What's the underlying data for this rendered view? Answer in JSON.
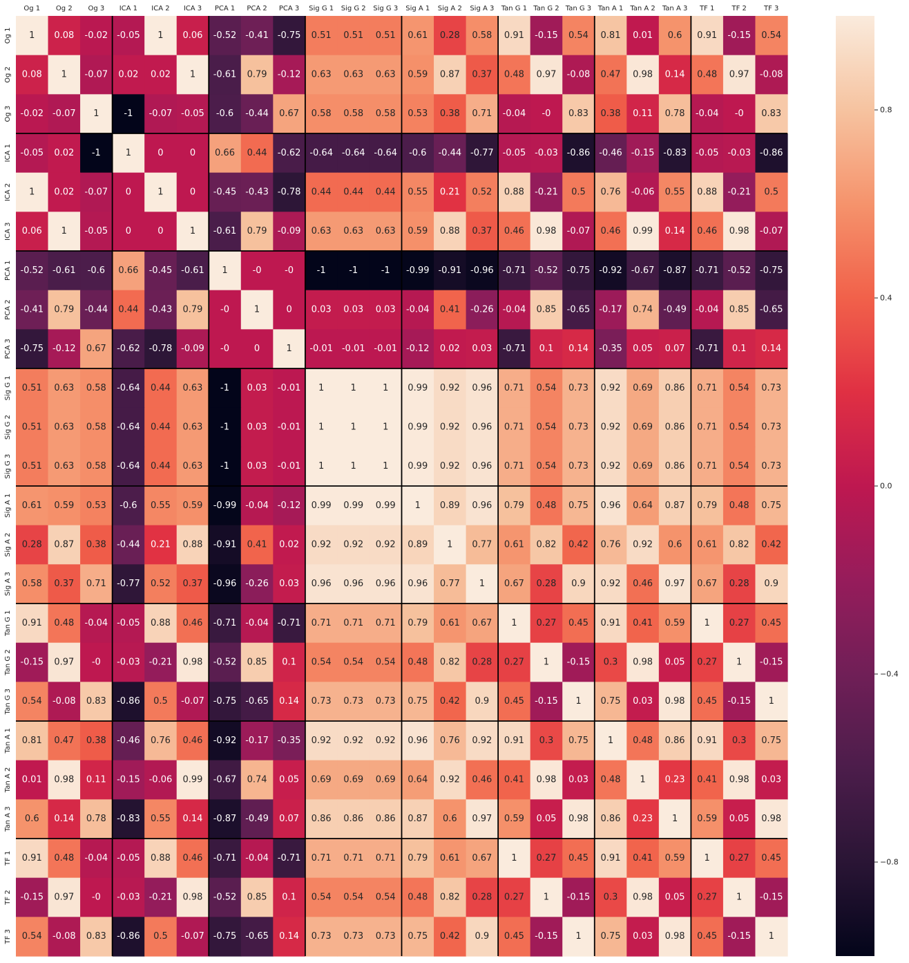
{
  "chart_data": {
    "type": "heatmap",
    "title": "",
    "xlabel": "",
    "ylabel": "",
    "x_tick_position": "top",
    "labels": [
      "Og 1",
      "Og 2",
      "Og 3",
      "ICA 1",
      "ICA 2",
      "ICA 3",
      "PCA 1",
      "PCA 2",
      "PCA 3",
      "Sig G 1",
      "Sig G 2",
      "Sig G 3",
      "Sig A 1",
      "Sig A 2",
      "Sig A 3",
      "Tan G 1",
      "Tan G 2",
      "Tan G 3",
      "Tan A 1",
      "Tan A 2",
      "Tan A 3",
      "TF 1",
      "TF 2",
      "TF 3"
    ],
    "group_size": 3,
    "colormap": "rocket",
    "value_range": [
      -1,
      1
    ],
    "colorbar_ticks": [
      -0.8,
      -0.4,
      0.0,
      0.4,
      0.8
    ],
    "colorbar_tick_labels": [
      "−0.8",
      "−0.4",
      "0.0",
      "0.4",
      "0.8"
    ],
    "values": [
      [
        "1",
        "0.08",
        "-0.02",
        "-0.05",
        "1",
        "0.06",
        "-0.52",
        "-0.41",
        "-0.75",
        "0.51",
        "0.51",
        "0.51",
        "0.61",
        "0.28",
        "0.58",
        "0.91",
        "-0.15",
        "0.54",
        "0.81",
        "0.01",
        "0.6",
        "0.91",
        "-0.15",
        "0.54"
      ],
      [
        "0.08",
        "1",
        "-0.07",
        "0.02",
        "0.02",
        "1",
        "-0.61",
        "0.79",
        "-0.12",
        "0.63",
        "0.63",
        "0.63",
        "0.59",
        "0.87",
        "0.37",
        "0.48",
        "0.97",
        "-0.08",
        "0.47",
        "0.98",
        "0.14",
        "0.48",
        "0.97",
        "-0.08"
      ],
      [
        "-0.02",
        "-0.07",
        "1",
        "-1",
        "-0.07",
        "-0.05",
        "-0.6",
        "-0.44",
        "0.67",
        "0.58",
        "0.58",
        "0.58",
        "0.53",
        "0.38",
        "0.71",
        "-0.04",
        "-0",
        "0.83",
        "0.38",
        "0.11",
        "0.78",
        "-0.04",
        "-0",
        "0.83"
      ],
      [
        "-0.05",
        "0.02",
        "-1",
        "1",
        "0",
        "0",
        "0.66",
        "0.44",
        "-0.62",
        "-0.64",
        "-0.64",
        "-0.64",
        "-0.6",
        "-0.44",
        "-0.77",
        "-0.05",
        "-0.03",
        "-0.86",
        "-0.46",
        "-0.15",
        "-0.83",
        "-0.05",
        "-0.03",
        "-0.86"
      ],
      [
        "1",
        "0.02",
        "-0.07",
        "0",
        "1",
        "0",
        "-0.45",
        "-0.43",
        "-0.78",
        "0.44",
        "0.44",
        "0.44",
        "0.55",
        "0.21",
        "0.52",
        "0.88",
        "-0.21",
        "0.5",
        "0.76",
        "-0.06",
        "0.55",
        "0.88",
        "-0.21",
        "0.5"
      ],
      [
        "0.06",
        "1",
        "-0.05",
        "0",
        "0",
        "1",
        "-0.61",
        "0.79",
        "-0.09",
        "0.63",
        "0.63",
        "0.63",
        "0.59",
        "0.88",
        "0.37",
        "0.46",
        "0.98",
        "-0.07",
        "0.46",
        "0.99",
        "0.14",
        "0.46",
        "0.98",
        "-0.07"
      ],
      [
        "-0.52",
        "-0.61",
        "-0.6",
        "0.66",
        "-0.45",
        "-0.61",
        "1",
        "-0",
        "-0",
        "-1",
        "-1",
        "-1",
        "-0.99",
        "-0.91",
        "-0.96",
        "-0.71",
        "-0.52",
        "-0.75",
        "-0.92",
        "-0.67",
        "-0.87",
        "-0.71",
        "-0.52",
        "-0.75"
      ],
      [
        "-0.41",
        "0.79",
        "-0.44",
        "0.44",
        "-0.43",
        "0.79",
        "-0",
        "1",
        "0",
        "0.03",
        "0.03",
        "0.03",
        "-0.04",
        "0.41",
        "-0.26",
        "-0.04",
        "0.85",
        "-0.65",
        "-0.17",
        "0.74",
        "-0.49",
        "-0.04",
        "0.85",
        "-0.65"
      ],
      [
        "-0.75",
        "-0.12",
        "0.67",
        "-0.62",
        "-0.78",
        "-0.09",
        "-0",
        "0",
        "1",
        "-0.01",
        "-0.01",
        "-0.01",
        "-0.12",
        "0.02",
        "0.03",
        "-0.71",
        "0.1",
        "0.14",
        "-0.35",
        "0.05",
        "0.07",
        "-0.71",
        "0.1",
        "0.14"
      ],
      [
        "0.51",
        "0.63",
        "0.58",
        "-0.64",
        "0.44",
        "0.63",
        "-1",
        "0.03",
        "-0.01",
        "1",
        "1",
        "1",
        "0.99",
        "0.92",
        "0.96",
        "0.71",
        "0.54",
        "0.73",
        "0.92",
        "0.69",
        "0.86",
        "0.71",
        "0.54",
        "0.73"
      ],
      [
        "0.51",
        "0.63",
        "0.58",
        "-0.64",
        "0.44",
        "0.63",
        "-1",
        "0.03",
        "-0.01",
        "1",
        "1",
        "1",
        "0.99",
        "0.92",
        "0.96",
        "0.71",
        "0.54",
        "0.73",
        "0.92",
        "0.69",
        "0.86",
        "0.71",
        "0.54",
        "0.73"
      ],
      [
        "0.51",
        "0.63",
        "0.58",
        "-0.64",
        "0.44",
        "0.63",
        "-1",
        "0.03",
        "-0.01",
        "1",
        "1",
        "1",
        "0.99",
        "0.92",
        "0.96",
        "0.71",
        "0.54",
        "0.73",
        "0.92",
        "0.69",
        "0.86",
        "0.71",
        "0.54",
        "0.73"
      ],
      [
        "0.61",
        "0.59",
        "0.53",
        "-0.6",
        "0.55",
        "0.59",
        "-0.99",
        "-0.04",
        "-0.12",
        "0.99",
        "0.99",
        "0.99",
        "1",
        "0.89",
        "0.96",
        "0.79",
        "0.48",
        "0.75",
        "0.96",
        "0.64",
        "0.87",
        "0.79",
        "0.48",
        "0.75"
      ],
      [
        "0.28",
        "0.87",
        "0.38",
        "-0.44",
        "0.21",
        "0.88",
        "-0.91",
        "0.41",
        "0.02",
        "0.92",
        "0.92",
        "0.92",
        "0.89",
        "1",
        "0.77",
        "0.61",
        "0.82",
        "0.42",
        "0.76",
        "0.92",
        "0.6",
        "0.61",
        "0.82",
        "0.42"
      ],
      [
        "0.58",
        "0.37",
        "0.71",
        "-0.77",
        "0.52",
        "0.37",
        "-0.96",
        "-0.26",
        "0.03",
        "0.96",
        "0.96",
        "0.96",
        "0.96",
        "0.77",
        "1",
        "0.67",
        "0.28",
        "0.9",
        "0.92",
        "0.46",
        "0.97",
        "0.67",
        "0.28",
        "0.9"
      ],
      [
        "0.91",
        "0.48",
        "-0.04",
        "-0.05",
        "0.88",
        "0.46",
        "-0.71",
        "-0.04",
        "-0.71",
        "0.71",
        "0.71",
        "0.71",
        "0.79",
        "0.61",
        "0.67",
        "1",
        "0.27",
        "0.45",
        "0.91",
        "0.41",
        "0.59",
        "1",
        "0.27",
        "0.45"
      ],
      [
        "-0.15",
        "0.97",
        "-0",
        "-0.03",
        "-0.21",
        "0.98",
        "-0.52",
        "0.85",
        "0.1",
        "0.54",
        "0.54",
        "0.54",
        "0.48",
        "0.82",
        "0.28",
        "0.27",
        "1",
        "-0.15",
        "0.3",
        "0.98",
        "0.05",
        "0.27",
        "1",
        "-0.15"
      ],
      [
        "0.54",
        "-0.08",
        "0.83",
        "-0.86",
        "0.5",
        "-0.07",
        "-0.75",
        "-0.65",
        "0.14",
        "0.73",
        "0.73",
        "0.73",
        "0.75",
        "0.42",
        "0.9",
        "0.45",
        "-0.15",
        "1",
        "0.75",
        "0.03",
        "0.98",
        "0.45",
        "-0.15",
        "1"
      ],
      [
        "0.81",
        "0.47",
        "0.38",
        "-0.46",
        "0.76",
        "0.46",
        "-0.92",
        "-0.17",
        "-0.35",
        "0.92",
        "0.92",
        "0.92",
        "0.96",
        "0.76",
        "0.92",
        "0.91",
        "0.3",
        "0.75",
        "1",
        "0.48",
        "0.86",
        "0.91",
        "0.3",
        "0.75"
      ],
      [
        "0.01",
        "0.98",
        "0.11",
        "-0.15",
        "-0.06",
        "0.99",
        "-0.67",
        "0.74",
        "0.05",
        "0.69",
        "0.69",
        "0.69",
        "0.64",
        "0.92",
        "0.46",
        "0.41",
        "0.98",
        "0.03",
        "0.48",
        "1",
        "0.23",
        "0.41",
        "0.98",
        "0.03"
      ],
      [
        "0.6",
        "0.14",
        "0.78",
        "-0.83",
        "0.55",
        "0.14",
        "-0.87",
        "-0.49",
        "0.07",
        "0.86",
        "0.86",
        "0.86",
        "0.87",
        "0.6",
        "0.97",
        "0.59",
        "0.05",
        "0.98",
        "0.86",
        "0.23",
        "1",
        "0.59",
        "0.05",
        "0.98"
      ],
      [
        "0.91",
        "0.48",
        "-0.04",
        "-0.05",
        "0.88",
        "0.46",
        "-0.71",
        "-0.04",
        "-0.71",
        "0.71",
        "0.71",
        "0.71",
        "0.79",
        "0.61",
        "0.67",
        "1",
        "0.27",
        "0.45",
        "0.91",
        "0.41",
        "0.59",
        "1",
        "0.27",
        "0.45"
      ],
      [
        "-0.15",
        "0.97",
        "-0",
        "-0.03",
        "-0.21",
        "0.98",
        "-0.52",
        "0.85",
        "0.1",
        "0.54",
        "0.54",
        "0.54",
        "0.48",
        "0.82",
        "0.28",
        "0.27",
        "1",
        "-0.15",
        "0.3",
        "0.98",
        "0.05",
        "0.27",
        "1",
        "-0.15"
      ],
      [
        "0.54",
        "-0.08",
        "0.83",
        "-0.86",
        "0.5",
        "-0.07",
        "-0.75",
        "-0.65",
        "0.14",
        "0.73",
        "0.73",
        "0.73",
        "0.75",
        "0.42",
        "0.9",
        "0.45",
        "-0.15",
        "1",
        "0.75",
        "0.03",
        "0.98",
        "0.45",
        "-0.15",
        "1"
      ]
    ]
  }
}
